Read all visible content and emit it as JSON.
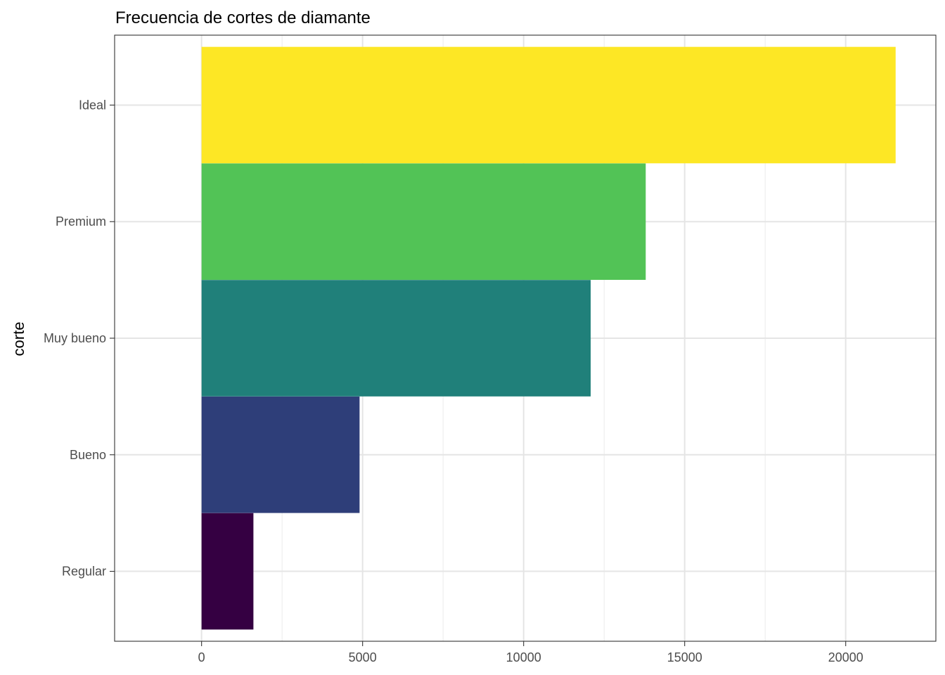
{
  "chart_data": {
    "type": "bar",
    "orientation": "horizontal",
    "title": "Frecuencia de cortes de diamante",
    "xlabel": "",
    "ylabel": "corte",
    "categories": [
      "Ideal",
      "Premium",
      "Muy bueno",
      "Bueno",
      "Regular"
    ],
    "values": [
      21551,
      13791,
      12082,
      4906,
      1610
    ],
    "colors": [
      "#fde725",
      "#52c356",
      "#20807a",
      "#2e3e79",
      "#350042"
    ],
    "xlim": [
      -2700,
      22800
    ],
    "xticks": [
      0,
      5000,
      10000,
      15000,
      20000
    ],
    "xtick_labels": [
      "0",
      "5000",
      "10000",
      "15000",
      "20000"
    ],
    "grid": true,
    "legend": "none"
  }
}
